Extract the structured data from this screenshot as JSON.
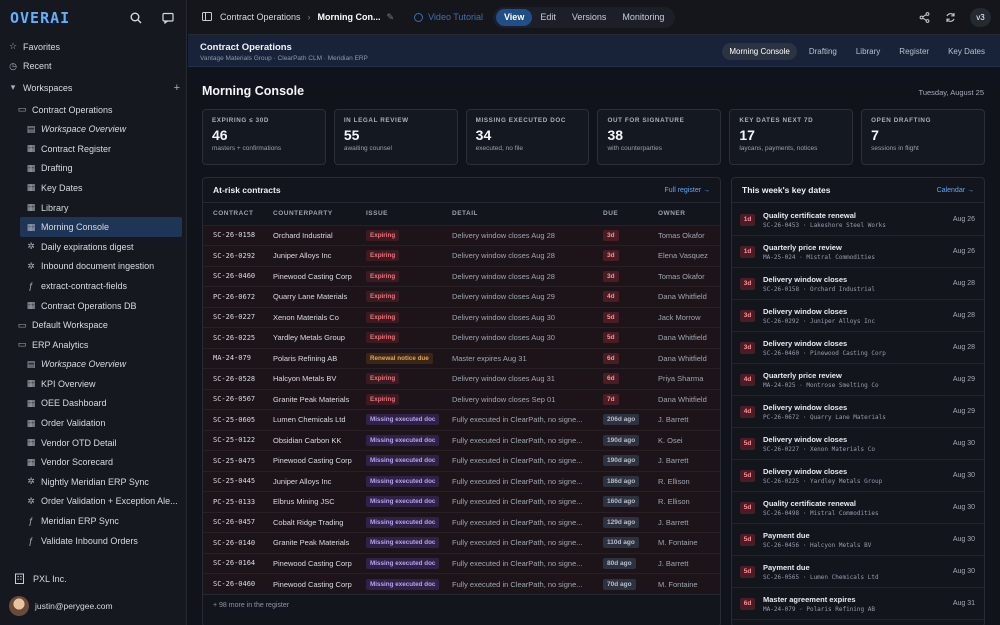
{
  "app": {
    "logo": "OVERAI"
  },
  "sidebar": {
    "items": [
      {
        "label": "Favorites",
        "icon": "star-icon",
        "level": 0
      },
      {
        "label": "Recent",
        "icon": "clock-icon",
        "level": 0
      },
      {
        "label": "Workspaces",
        "icon": "chevron-down-icon",
        "level": 0,
        "plus": "+"
      },
      {
        "label": "Contract Operations",
        "icon": "folder-icon",
        "level": 1
      },
      {
        "label": "Workspace Overview",
        "icon": "book-icon",
        "level": 2,
        "italic": true
      },
      {
        "label": "Contract Register",
        "icon": "grid-icon",
        "level": 2
      },
      {
        "label": "Drafting",
        "icon": "grid-icon",
        "level": 2
      },
      {
        "label": "Key Dates",
        "icon": "grid-icon",
        "level": 2
      },
      {
        "label": "Library",
        "icon": "grid-icon",
        "level": 2
      },
      {
        "label": "Morning Console",
        "icon": "grid-icon",
        "level": 2,
        "active": true
      },
      {
        "label": "Daily expirations digest",
        "icon": "workflow-icon",
        "level": 2
      },
      {
        "label": "Inbound document ingestion",
        "icon": "workflow-icon",
        "level": 2
      },
      {
        "label": "extract-contract-fields",
        "icon": "function-icon",
        "level": 2
      },
      {
        "label": "Contract Operations DB",
        "icon": "grid-icon",
        "level": 2
      },
      {
        "label": "Default Workspace",
        "icon": "folder-icon",
        "level": 1
      },
      {
        "label": "ERP Analytics",
        "icon": "folder-icon",
        "level": 1
      },
      {
        "label": "Workspace Overview",
        "icon": "book-icon",
        "level": 2,
        "italic": true
      },
      {
        "label": "KPI Overview",
        "icon": "grid-icon",
        "level": 2
      },
      {
        "label": "OEE Dashboard",
        "icon": "grid-icon",
        "level": 2
      },
      {
        "label": "Order Validation",
        "icon": "grid-icon",
        "level": 2
      },
      {
        "label": "Vendor OTD Detail",
        "icon": "grid-icon",
        "level": 2
      },
      {
        "label": "Vendor Scorecard",
        "icon": "grid-icon",
        "level": 2
      },
      {
        "label": "Nightly Meridian ERP Sync",
        "icon": "workflow-icon",
        "level": 2
      },
      {
        "label": "Order Validation + Exception Ale...",
        "icon": "workflow-icon",
        "level": 2
      },
      {
        "label": "Meridian ERP Sync",
        "icon": "function-icon",
        "level": 2
      },
      {
        "label": "Validate Inbound Orders",
        "icon": "function-icon",
        "level": 2
      }
    ],
    "org": "PXL Inc.",
    "user": "justin@perygee.com"
  },
  "topbar": {
    "crumb1": "Contract Operations",
    "crumb2": "Morning Con...",
    "video": "Video Tutorial",
    "tabs": [
      "View",
      "Edit",
      "Versions",
      "Monitoring"
    ],
    "active_tab": "View",
    "version": "v3"
  },
  "subhead": {
    "title": "Contract Operations",
    "subtitle": "Vantage Materials Group · ClearPath CLM · Meridian ERP",
    "tabs": [
      "Morning Console",
      "Drafting",
      "Library",
      "Register",
      "Key Dates"
    ],
    "active_tab": "Morning Console"
  },
  "page": {
    "title": "Morning Console",
    "date": "Tuesday, August 25"
  },
  "cards": [
    {
      "label": "EXPIRING ≤ 30D",
      "value": "46",
      "sub": "masters + confirmations"
    },
    {
      "label": "IN LEGAL REVIEW",
      "value": "55",
      "sub": "awaiting counsel"
    },
    {
      "label": "MISSING EXECUTED DOC",
      "value": "34",
      "sub": "executed, no file"
    },
    {
      "label": "OUT FOR SIGNATURE",
      "value": "38",
      "sub": "with counterparties"
    },
    {
      "label": "KEY DATES NEXT 7D",
      "value": "17",
      "sub": "laycans, payments, notices"
    },
    {
      "label": "OPEN DRAFTING",
      "value": "7",
      "sub": "sessions in flight"
    }
  ],
  "atrisk": {
    "title": "At-risk contracts",
    "link": "Full register →",
    "columns": [
      "CONTRACT",
      "COUNTERPARTY",
      "ISSUE",
      "DETAIL",
      "DUE",
      "OWNER"
    ],
    "rows": [
      {
        "contract": "SC-26-0158",
        "cp": "Orchard Industrial",
        "issue": "Expiring",
        "kind": "exp",
        "detail": "Delivery window closes Aug 28",
        "due": "3d",
        "owner": "Tomas Okafor"
      },
      {
        "contract": "SC-26-0292",
        "cp": "Juniper Alloys Inc",
        "issue": "Expiring",
        "kind": "exp",
        "detail": "Delivery window closes Aug 28",
        "due": "3d",
        "owner": "Elena Vasquez"
      },
      {
        "contract": "SC-26-0460",
        "cp": "Pinewood Casting Corp",
        "issue": "Expiring",
        "kind": "exp",
        "detail": "Delivery window closes Aug 28",
        "due": "3d",
        "owner": "Tomas Okafor"
      },
      {
        "contract": "PC-26-0672",
        "cp": "Quarry Lane Materials",
        "issue": "Expiring",
        "kind": "exp",
        "detail": "Delivery window closes Aug 29",
        "due": "4d",
        "owner": "Dana Whitfield"
      },
      {
        "contract": "SC-26-0227",
        "cp": "Xenon Materials Co",
        "issue": "Expiring",
        "kind": "exp",
        "detail": "Delivery window closes Aug 30",
        "due": "5d",
        "owner": "Jack Morrow"
      },
      {
        "contract": "SC-26-0225",
        "cp": "Yardley Metals Group",
        "issue": "Expiring",
        "kind": "exp",
        "detail": "Delivery window closes Aug 30",
        "due": "5d",
        "owner": "Dana Whitfield"
      },
      {
        "contract": "MA-24-079",
        "cp": "Polaris Refining AB",
        "issue": "Renewal notice due",
        "kind": "ren",
        "detail": "Master expires Aug 31",
        "due": "6d",
        "owner": "Dana Whitfield"
      },
      {
        "contract": "SC-26-0528",
        "cp": "Halcyon Metals BV",
        "issue": "Expiring",
        "kind": "exp",
        "detail": "Delivery window closes Aug 31",
        "due": "6d",
        "owner": "Priya Sharma"
      },
      {
        "contract": "SC-26-0567",
        "cp": "Granite Peak Materials",
        "issue": "Expiring",
        "kind": "exp",
        "detail": "Delivery window closes Sep 01",
        "due": "7d",
        "owner": "Dana Whitfield"
      },
      {
        "contract": "SC-25-0605",
        "cp": "Lumen Chemicals Ltd",
        "issue": "Missing executed doc",
        "kind": "mis",
        "detail": "Fully executed in ClearPath, no signe...",
        "due": "206d ago",
        "owner": "J. Barrett"
      },
      {
        "contract": "SC-25-0122",
        "cp": "Obsidian Carbon KK",
        "issue": "Missing executed doc",
        "kind": "mis",
        "detail": "Fully executed in ClearPath, no signe...",
        "due": "190d ago",
        "owner": "K. Osei"
      },
      {
        "contract": "SC-25-0475",
        "cp": "Pinewood Casting Corp",
        "issue": "Missing executed doc",
        "kind": "mis",
        "detail": "Fully executed in ClearPath, no signe...",
        "due": "190d ago",
        "owner": "J. Barrett"
      },
      {
        "contract": "SC-25-0445",
        "cp": "Juniper Alloys Inc",
        "issue": "Missing executed doc",
        "kind": "mis",
        "detail": "Fully executed in ClearPath, no signe...",
        "due": "186d ago",
        "owner": "R. Ellison"
      },
      {
        "contract": "PC-25-0133",
        "cp": "Elbrus Mining JSC",
        "issue": "Missing executed doc",
        "kind": "mis",
        "detail": "Fully executed in ClearPath, no signe...",
        "due": "160d ago",
        "owner": "R. Ellison"
      },
      {
        "contract": "SC-26-0457",
        "cp": "Cobalt Ridge Trading",
        "issue": "Missing executed doc",
        "kind": "mis",
        "detail": "Fully executed in ClearPath, no signe...",
        "due": "129d ago",
        "owner": "J. Barrett"
      },
      {
        "contract": "SC-26-0140",
        "cp": "Granite Peak Materials",
        "issue": "Missing executed doc",
        "kind": "mis",
        "detail": "Fully executed in ClearPath, no signe...",
        "due": "110d ago",
        "owner": "M. Fontaine"
      },
      {
        "contract": "SC-26-0164",
        "cp": "Pinewood Casting Corp",
        "issue": "Missing executed doc",
        "kind": "mis",
        "detail": "Fully executed in ClearPath, no signe...",
        "due": "80d ago",
        "owner": "J. Barrett"
      },
      {
        "contract": "SC-26-0460",
        "cp": "Pinewood Casting Corp",
        "issue": "Missing executed doc",
        "kind": "mis",
        "detail": "Fully executed in ClearPath, no signe...",
        "due": "70d ago",
        "owner": "M. Fontaine"
      }
    ],
    "more": "+ 98 more in the register"
  },
  "keydates": {
    "title": "This week's key dates",
    "link": "Calendar →",
    "items": [
      {
        "badge": "1d",
        "title": "Quality certificate renewal",
        "sub": "SC-26-0453 · Lakeshore Steel Works",
        "date": "Aug 26"
      },
      {
        "badge": "1d",
        "title": "Quarterly price review",
        "sub": "MA-25-024 · Mistral Commodities",
        "date": "Aug 26"
      },
      {
        "badge": "3d",
        "title": "Delivery window closes",
        "sub": "SC-26-0158 · Orchard Industrial",
        "date": "Aug 28"
      },
      {
        "badge": "3d",
        "title": "Delivery window closes",
        "sub": "SC-26-0292 · Juniper Alloys Inc",
        "date": "Aug 28"
      },
      {
        "badge": "3d",
        "title": "Delivery window closes",
        "sub": "SC-26-0460 · Pinewood Casting Corp",
        "date": "Aug 28"
      },
      {
        "badge": "4d",
        "title": "Quarterly price review",
        "sub": "MA-24-025 · Montrose Smelting Co",
        "date": "Aug 29"
      },
      {
        "badge": "4d",
        "title": "Delivery window closes",
        "sub": "PC-26-0672 · Quarry Lane Materials",
        "date": "Aug 29"
      },
      {
        "badge": "5d",
        "title": "Delivery window closes",
        "sub": "SC-26-0227 · Xenon Materials Co",
        "date": "Aug 30"
      },
      {
        "badge": "5d",
        "title": "Delivery window closes",
        "sub": "SC-26-0225 · Yardley Metals Group",
        "date": "Aug 30"
      },
      {
        "badge": "5d",
        "title": "Quality certificate renewal",
        "sub": "SC-26-0498 · Mistral Commodities",
        "date": "Aug 30"
      },
      {
        "badge": "5d",
        "title": "Payment due",
        "sub": "SC-26-0456 · Halcyon Metals BV",
        "date": "Aug 30"
      },
      {
        "badge": "5d",
        "title": "Payment due",
        "sub": "SC-26-0565 · Lumen Chemicals Ltd",
        "date": "Aug 30"
      },
      {
        "badge": "6d",
        "title": "Master agreement expires",
        "sub": "MA-24-079 · Polaris Refining AB",
        "date": "Aug 31"
      }
    ]
  }
}
